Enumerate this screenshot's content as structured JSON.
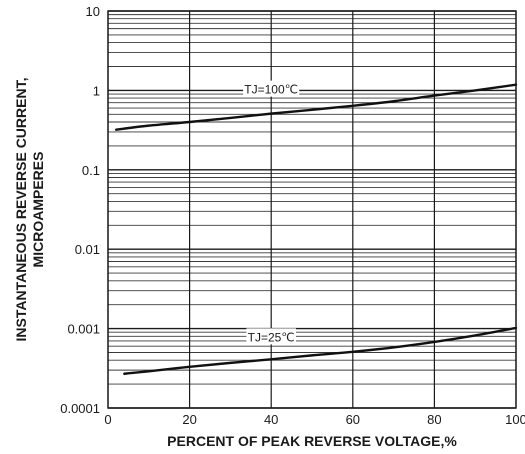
{
  "chart_data": {
    "type": "line",
    "title": "",
    "xlabel": "PERCENT OF PEAK REVERSE VOLTAGE,%",
    "ylabel_lines": [
      "INSTANTANEOUS REVERSE CURRENT,",
      "MICROAMPERES"
    ],
    "x_ticks": [
      "0",
      "20",
      "40",
      "60",
      "80",
      "100"
    ],
    "y_ticks": [
      "0.0001",
      "0.001",
      "0.01",
      "0.1",
      "1",
      "10"
    ],
    "xlim": [
      0,
      100
    ],
    "ylim": [
      0.0001,
      10
    ],
    "y_scale": "log",
    "grid": true,
    "series": [
      {
        "name": "TJ=100℃",
        "x": [
          2,
          10,
          20,
          30,
          40,
          50,
          60,
          70,
          80,
          90,
          100
        ],
        "y": [
          0.32,
          0.36,
          0.4,
          0.45,
          0.51,
          0.57,
          0.64,
          0.73,
          0.86,
          1.0,
          1.18
        ]
      },
      {
        "name": "TJ=25℃",
        "x": [
          4,
          10,
          20,
          30,
          40,
          50,
          60,
          70,
          80,
          90,
          100
        ],
        "y": [
          0.00027,
          0.00029,
          0.00033,
          0.00037,
          0.00041,
          0.00046,
          0.00051,
          0.00058,
          0.00068,
          0.00082,
          0.00102
        ]
      }
    ]
  }
}
